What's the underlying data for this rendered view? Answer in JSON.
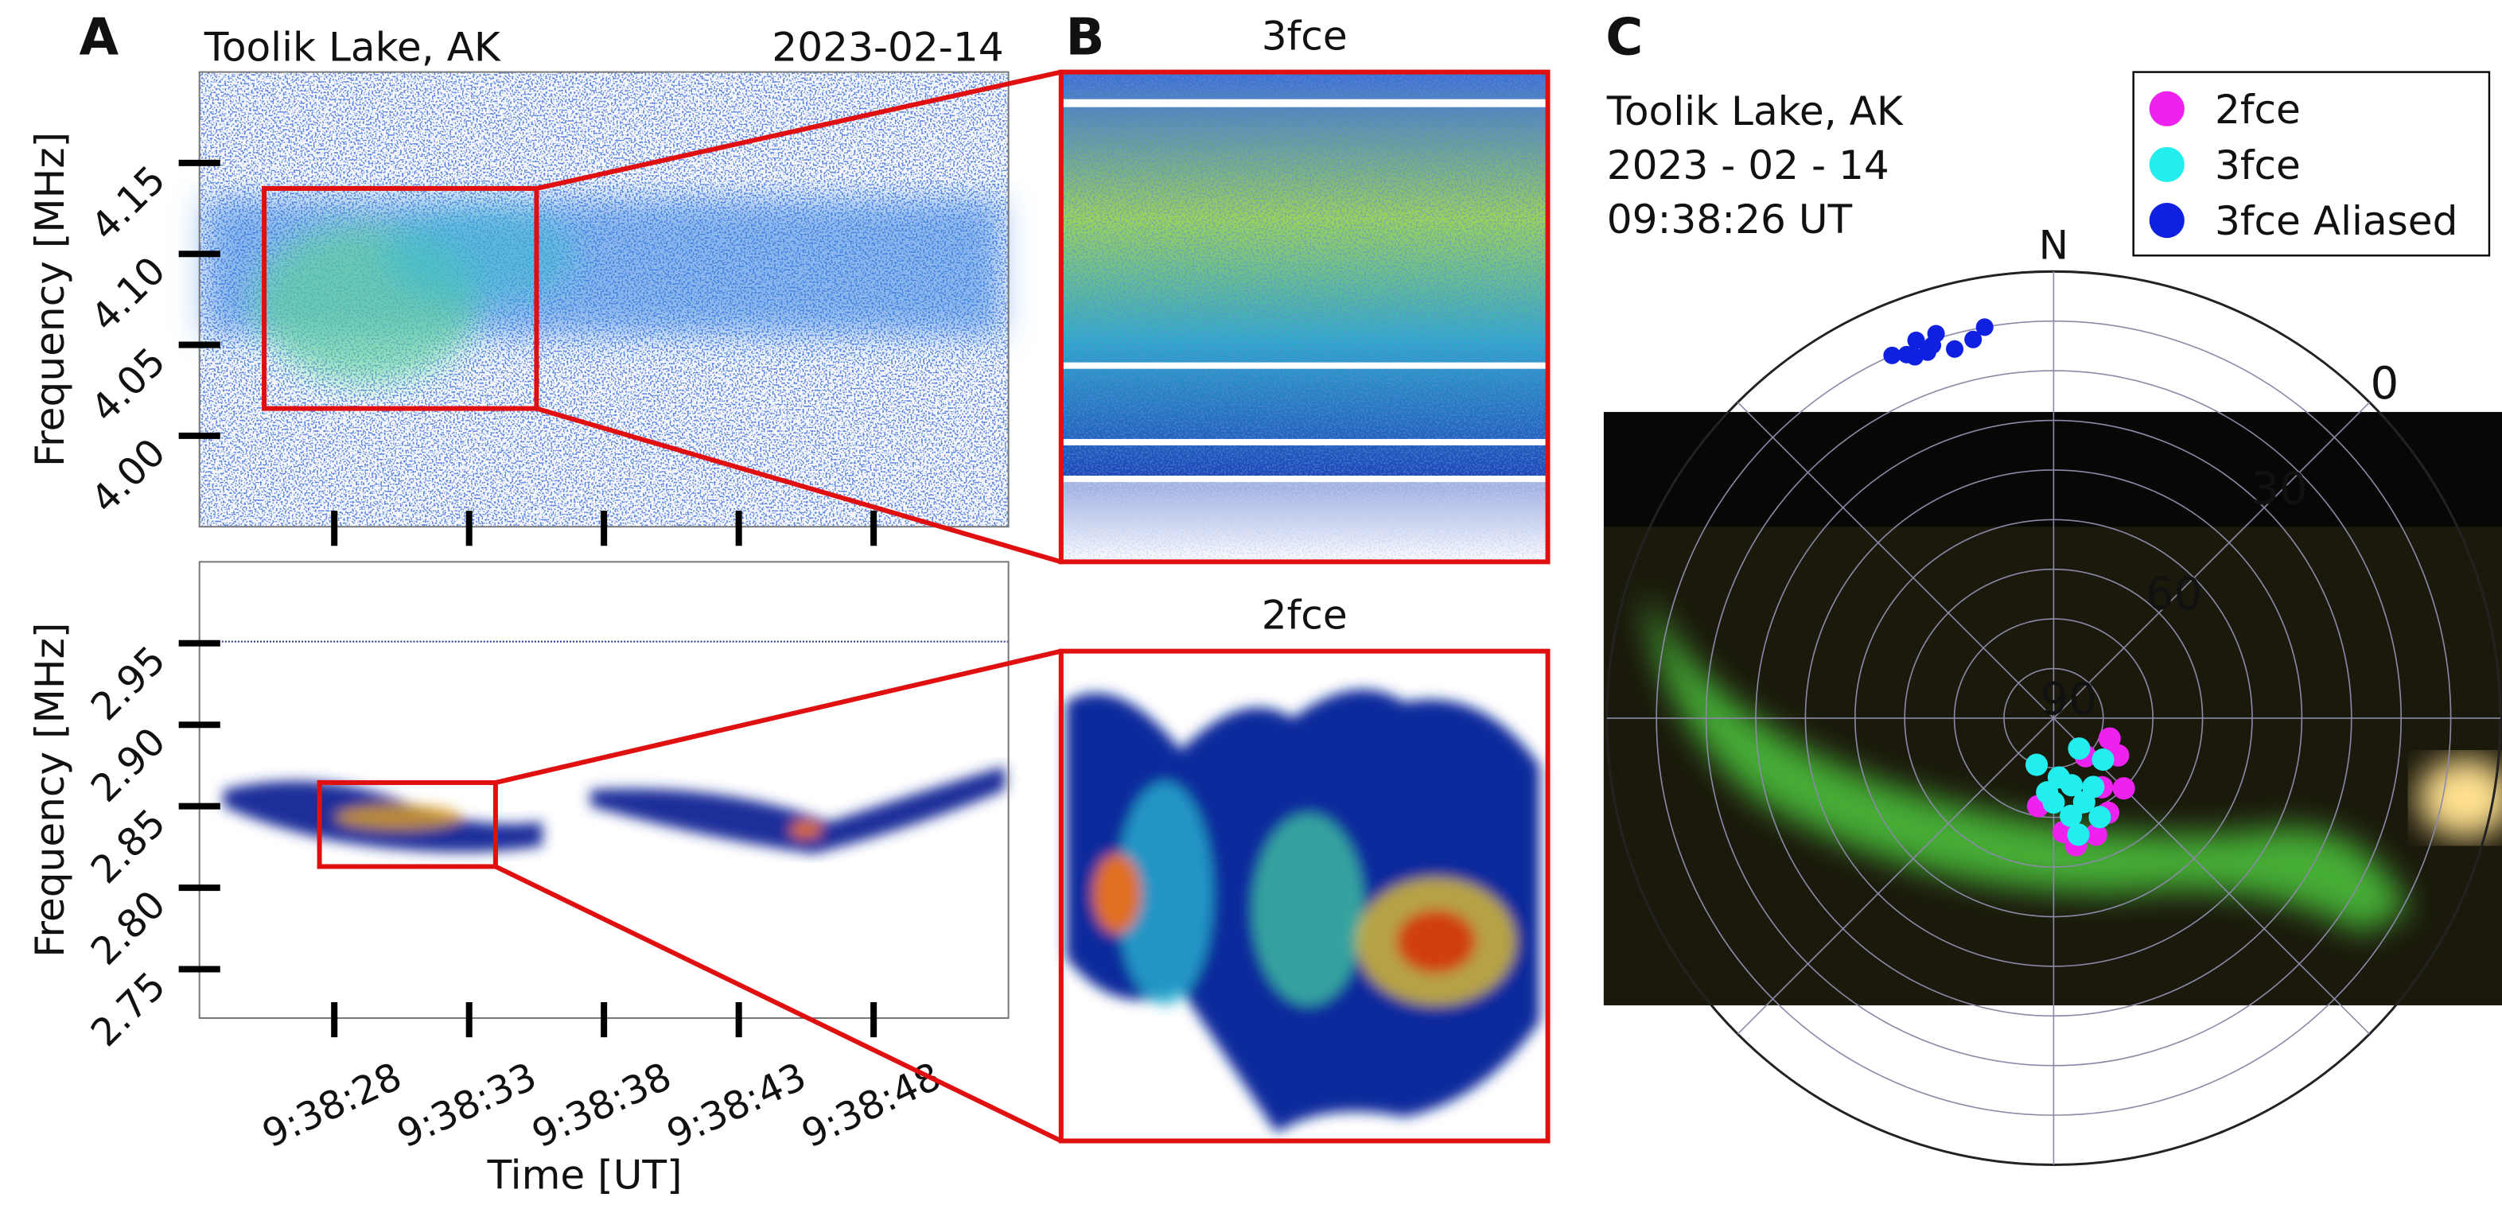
{
  "chart_data": [
    {
      "type": "spectrogram",
      "panel": "A",
      "title": "Toolik Lake, AK",
      "date": "2023-02-14",
      "ylabel": "Frequency [MHz]",
      "xlim": [
        34703,
        34733
      ],
      "ylim": [
        3.95,
        4.2
      ],
      "yticks": [
        {
          "value": 4,
          "label": "4.00"
        },
        {
          "value": 4.05,
          "label": "4.05"
        },
        {
          "value": 4.1,
          "label": "4.10"
        },
        {
          "value": 4.15,
          "label": "4.15"
        }
      ],
      "xticks": [
        34708,
        34713,
        34718,
        34723,
        34728
      ],
      "zoom_box": {
        "x": [
          34705.4,
          34715.5
        ],
        "y": [
          4.015,
          4.136
        ]
      }
    },
    {
      "type": "spectrogram",
      "ylabel": "Frequency [MHz]",
      "xlabel": "Time [UT]",
      "xlim": [
        34703,
        34733
      ],
      "ylim": [
        2.72,
        3.0
      ],
      "yticks": [
        {
          "value": 2.75,
          "label": "2.75"
        },
        {
          "value": 2.8,
          "label": "2.80"
        },
        {
          "value": 2.85,
          "label": "2.85"
        },
        {
          "value": 2.9,
          "label": "2.90"
        },
        {
          "value": 2.95,
          "label": "2.95"
        }
      ],
      "xticks": [
        {
          "value": 34708,
          "label": "9:38:28"
        },
        {
          "value": 34713,
          "label": "9:38:33"
        },
        {
          "value": 34718,
          "label": "9:38:38"
        },
        {
          "value": 34723,
          "label": "9:38:43"
        },
        {
          "value": 34728,
          "label": "9:38:48"
        }
      ],
      "zoom_box": {
        "x": [
          34707.45,
          34713.98
        ],
        "y": [
          2.813,
          2.8645
        ]
      }
    },
    {
      "type": "zoom",
      "panel": "B",
      "title": "3fce"
    },
    {
      "type": "zoom",
      "title": "2fce"
    },
    {
      "type": "polar",
      "panel": "C",
      "text_lines": [
        "Toolik Lake, AK",
        "2023 - 02 - 14",
        "09:38:26 UT"
      ],
      "north_label": "N",
      "rticks": [
        0,
        30,
        60,
        90
      ],
      "rgrid": [
        0,
        10,
        20,
        30,
        40,
        50,
        60,
        70,
        80
      ],
      "series": [
        {
          "name": "2fce",
          "color": "#ee22ee",
          "az": [
            120,
            135,
            150,
            170,
            190,
            140,
            160,
            175,
            110,
            145
          ],
          "el": [
            75,
            70,
            68,
            64,
            72,
            80,
            65,
            67,
            78,
            73
          ]
        },
        {
          "name": "3fce",
          "color": "#22eeee",
          "az": [
            150,
            160,
            165,
            170,
            175,
            180,
            200,
            140,
            130,
            155,
            168,
            185
          ],
          "el": [
            74,
            72,
            76,
            70,
            78,
            73,
            80,
            82,
            77,
            68,
            66,
            75
          ]
        },
        {
          "name": "3fce Aliased",
          "color": "#1020e0",
          "az": [
            336,
            338,
            339,
            341,
            343,
            342,
            340,
            345,
            348,
            350
          ],
          "el": [
            10,
            11,
            12,
            12,
            9,
            11,
            9,
            13,
            12,
            10
          ]
        }
      ]
    }
  ]
}
